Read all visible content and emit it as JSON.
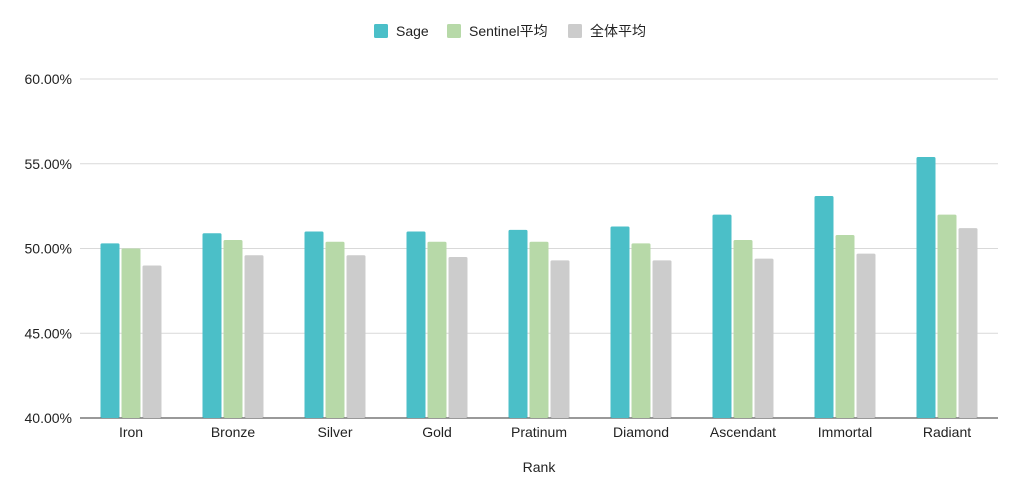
{
  "chart_data": {
    "type": "bar",
    "categories": [
      "Iron",
      "Bronze",
      "Silver",
      "Gold",
      "Pratinum",
      "Diamond",
      "Ascendant",
      "Immortal",
      "Radiant"
    ],
    "series": [
      {
        "name": "Sage",
        "color": "#4bbfc8",
        "values": [
          50.3,
          50.9,
          51.0,
          51.0,
          51.1,
          51.3,
          52.0,
          53.1,
          55.4
        ]
      },
      {
        "name": "Sentinel平均",
        "color": "#b7d9a8",
        "values": [
          50.0,
          50.5,
          50.4,
          50.4,
          50.4,
          50.3,
          50.5,
          50.8,
          52.0
        ]
      },
      {
        "name": "全体平均",
        "color": "#cccccc",
        "values": [
          49.0,
          49.6,
          49.6,
          49.5,
          49.3,
          49.3,
          49.4,
          49.7,
          51.2
        ]
      }
    ],
    "title": "",
    "xlabel": "Rank",
    "ylabel": "",
    "ylim": [
      40,
      60
    ],
    "yticks": [
      "40.00%",
      "45.00%",
      "50.00%",
      "55.00%",
      "60.00%"
    ],
    "ytick_values": [
      40,
      45,
      50,
      55,
      60
    ],
    "grid": true,
    "legend_position": "top-center",
    "gridline_color": "#d9d9d9"
  }
}
